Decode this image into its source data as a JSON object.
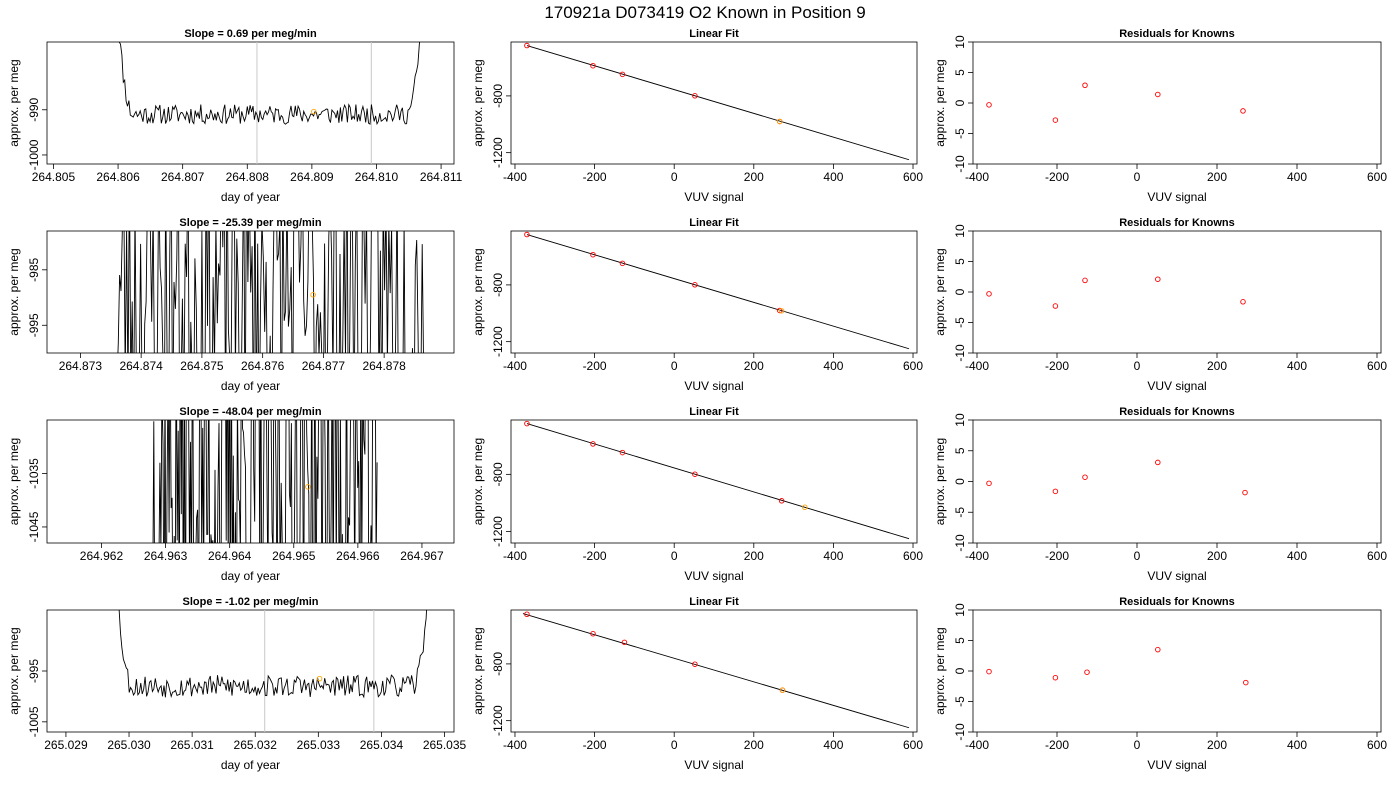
{
  "page_title": "170921a     D073419    O2 Known in Position  9",
  "colors": {
    "trace": "#000000",
    "marker_orange": "#ffa500",
    "marker_red": "#ff0000",
    "vline": "#c8c8c8",
    "frame": "#000000"
  },
  "chart_data": [
    {
      "type": "line",
      "title": "Slope =  0.69  per meg/min",
      "xlabel": "day of year",
      "ylabel": "approx. per meg",
      "xlim": [
        264.8049,
        264.8112
      ],
      "ylim": [
        -1002,
        -975
      ],
      "xticks": [
        "264.805",
        "264.806",
        "264.807",
        "264.808",
        "264.809",
        "264.810",
        "264.811"
      ],
      "yticks": [
        "-1000",
        "-990"
      ],
      "trace": {
        "x_start": 264.80595,
        "x_end": 264.81075,
        "baseline": -991,
        "noise": 2.2,
        "edge": "rise",
        "seed": 11
      },
      "vlines": [
        264.80815,
        264.80992
      ],
      "points": [
        {
          "x": 264.80903,
          "y": -990.4,
          "color": "orange"
        }
      ]
    },
    {
      "type": "scatter",
      "title": "Linear Fit",
      "xlabel": "VUV signal",
      "ylabel": "approx. per meg",
      "xlim": [
        -410,
        610
      ],
      "ylim": [
        -1280,
        -420
      ],
      "xticks": [
        "-400",
        "-200",
        "0",
        "200",
        "400",
        "600"
      ],
      "yticks": [
        "-800",
        "-1200"
      ],
      "line": [
        [
          -370,
          -445
        ],
        [
          590,
          -1250
        ]
      ],
      "points": [
        {
          "x": -370,
          "y": -445,
          "color": "red"
        },
        {
          "x": -204,
          "y": -587,
          "color": "red"
        },
        {
          "x": -130,
          "y": -648,
          "color": "red"
        },
        {
          "x": 52,
          "y": -799,
          "color": "red"
        },
        {
          "x": 265,
          "y": -980,
          "color": "red"
        },
        {
          "x": 265,
          "y": -980,
          "color": "orange"
        }
      ]
    },
    {
      "type": "scatter",
      "title": "Residuals for Knowns",
      "xlabel": "VUV signal",
      "ylabel": "approx. per meg",
      "xlim": [
        -410,
        610
      ],
      "ylim": [
        -10,
        10
      ],
      "xticks": [
        "-200",
        "0",
        "200",
        "400",
        "600"
      ],
      "xticks_extra": [
        "-400"
      ],
      "yticks": [
        "-10",
        "-5",
        "0",
        "5",
        "10"
      ],
      "points": [
        {
          "x": -370,
          "y": -0.3,
          "color": "red"
        },
        {
          "x": -204,
          "y": -2.8,
          "color": "red"
        },
        {
          "x": -130,
          "y": 2.9,
          "color": "red"
        },
        {
          "x": 52,
          "y": 1.4,
          "color": "red"
        },
        {
          "x": 265,
          "y": -1.3,
          "color": "red"
        }
      ]
    },
    {
      "type": "line",
      "title": "Slope =  -25.39  per meg/min",
      "xlabel": "day of year",
      "ylabel": "approx. per meg",
      "xlim": [
        264.87245,
        264.87915
      ],
      "ylim": [
        -1000,
        -978
      ],
      "xticks": [
        "264.873",
        "264.874",
        "264.875",
        "264.876",
        "264.877",
        "264.878"
      ],
      "yticks": [
        "-995",
        "-985"
      ],
      "trace": {
        "x_start": 264.8736,
        "x_end": 264.87865,
        "baseline": -990,
        "noise": 30,
        "edge": "none",
        "seed": 23
      },
      "vlines": [],
      "points": [
        {
          "x": 264.87683,
          "y": -989.5,
          "color": "orange"
        }
      ]
    },
    {
      "type": "scatter",
      "title": "Linear Fit",
      "xlabel": "VUV signal",
      "ylabel": "approx. per meg",
      "xlim": [
        -410,
        610
      ],
      "ylim": [
        -1280,
        -420
      ],
      "xticks": [
        "-400",
        "-200",
        "0",
        "200",
        "400",
        "600"
      ],
      "yticks": [
        "-800",
        "-1200"
      ],
      "line": [
        [
          -370,
          -445
        ],
        [
          590,
          -1250
        ]
      ],
      "points": [
        {
          "x": -370,
          "y": -445,
          "color": "red"
        },
        {
          "x": -204,
          "y": -587,
          "color": "red"
        },
        {
          "x": -130,
          "y": -648,
          "color": "red"
        },
        {
          "x": 52,
          "y": -799,
          "color": "red"
        },
        {
          "x": 265,
          "y": -980,
          "color": "red"
        },
        {
          "x": 270,
          "y": -983,
          "color": "orange"
        }
      ]
    },
    {
      "type": "scatter",
      "title": "Residuals for Knowns",
      "xlabel": "VUV signal",
      "ylabel": "approx. per meg",
      "xlim": [
        -410,
        610
      ],
      "ylim": [
        -10,
        10
      ],
      "xticks": [
        "-200",
        "0",
        "200",
        "400",
        "600"
      ],
      "xticks_extra": [
        "-400"
      ],
      "yticks": [
        "-10",
        "-5",
        "0",
        "5",
        "10"
      ],
      "points": [
        {
          "x": -370,
          "y": -0.3,
          "color": "red"
        },
        {
          "x": -204,
          "y": -2.3,
          "color": "red"
        },
        {
          "x": -130,
          "y": 1.9,
          "color": "red"
        },
        {
          "x": 52,
          "y": 2.1,
          "color": "red"
        },
        {
          "x": 265,
          "y": -1.6,
          "color": "red"
        }
      ]
    },
    {
      "type": "line",
      "title": "Slope =  -48.04  per meg/min",
      "xlabel": "day of year",
      "ylabel": "approx. per meg",
      "xlim": [
        264.96115,
        264.9675
      ],
      "ylim": [
        -1048,
        -1025
      ],
      "xticks": [
        "264.962",
        "264.963",
        "264.964",
        "264.965",
        "264.966",
        "264.967"
      ],
      "yticks": [
        "-1045",
        "-1035"
      ],
      "trace": {
        "x_start": 264.9628,
        "x_end": 264.9663,
        "baseline": -1036,
        "noise": 40,
        "edge": "none",
        "seed": 37
      },
      "vlines": [],
      "points": [
        {
          "x": 264.96522,
          "y": -1037.5,
          "color": "orange"
        }
      ]
    },
    {
      "type": "scatter",
      "title": "Linear Fit",
      "xlabel": "VUV signal",
      "ylabel": "approx. per meg",
      "xlim": [
        -410,
        610
      ],
      "ylim": [
        -1280,
        -420
      ],
      "xticks": [
        "-400",
        "-200",
        "0",
        "200",
        "400",
        "600"
      ],
      "yticks": [
        "-800",
        "-1200"
      ],
      "line": [
        [
          -370,
          -445
        ],
        [
          590,
          -1250
        ]
      ],
      "points": [
        {
          "x": -370,
          "y": -445,
          "color": "red"
        },
        {
          "x": -204,
          "y": -587,
          "color": "red"
        },
        {
          "x": -130,
          "y": -648,
          "color": "red"
        },
        {
          "x": 52,
          "y": -799,
          "color": "red"
        },
        {
          "x": 270,
          "y": -985,
          "color": "red"
        },
        {
          "x": 328,
          "y": -1030,
          "color": "orange"
        }
      ]
    },
    {
      "type": "scatter",
      "title": "Residuals for Knowns",
      "xlabel": "VUV signal",
      "ylabel": "approx. per meg",
      "xlim": [
        -410,
        610
      ],
      "ylim": [
        -10,
        10
      ],
      "xticks": [
        "-200",
        "0",
        "200",
        "400",
        "600"
      ],
      "xticks_extra": [
        "-400"
      ],
      "yticks": [
        "-10",
        "-5",
        "0",
        "5",
        "10"
      ],
      "points": [
        {
          "x": -370,
          "y": -0.3,
          "color": "red"
        },
        {
          "x": -204,
          "y": -1.6,
          "color": "red"
        },
        {
          "x": -130,
          "y": 0.7,
          "color": "red"
        },
        {
          "x": 52,
          "y": 3.1,
          "color": "red"
        },
        {
          "x": 270,
          "y": -1.8,
          "color": "red"
        }
      ]
    },
    {
      "type": "line",
      "title": "Slope =  -1.02  per meg/min",
      "xlabel": "day of year",
      "ylabel": "approx. per meg",
      "xlim": [
        265.0287,
        265.03515
      ],
      "ylim": [
        -1007,
        -983
      ],
      "xticks": [
        "265.029",
        "265.030",
        "265.031",
        "265.032",
        "265.033",
        "265.034",
        "265.035"
      ],
      "yticks": [
        "-1005",
        "-995"
      ],
      "trace": {
        "x_start": 265.02975,
        "x_end": 265.0348,
        "baseline": -998,
        "noise": 2.2,
        "edge": "rise",
        "seed": 53
      },
      "vlines": [
        265.03215,
        265.03388
      ],
      "points": [
        {
          "x": 265.03302,
          "y": -996.5,
          "color": "orange"
        }
      ]
    },
    {
      "type": "scatter",
      "title": "Linear Fit",
      "xlabel": "VUV signal",
      "ylabel": "approx. per meg",
      "xlim": [
        -410,
        610
      ],
      "ylim": [
        -1280,
        -420
      ],
      "xticks": [
        "-400",
        "-200",
        "0",
        "200",
        "400",
        "600"
      ],
      "yticks": [
        "-800",
        "-1200"
      ],
      "line": [
        [
          -380,
          -445
        ],
        [
          590,
          -1250
        ]
      ],
      "points": [
        {
          "x": -370,
          "y": -450,
          "color": "red"
        },
        {
          "x": -204,
          "y": -587,
          "color": "red"
        },
        {
          "x": -125,
          "y": -648,
          "color": "red"
        },
        {
          "x": 52,
          "y": -802,
          "color": "red"
        },
        {
          "x": 272,
          "y": -985,
          "color": "red"
        },
        {
          "x": 272,
          "y": -985,
          "color": "orange"
        }
      ]
    },
    {
      "type": "scatter",
      "title": "Residuals for Knowns",
      "xlabel": "VUV signal",
      "ylabel": "approx. per meg",
      "xlim": [
        -410,
        610
      ],
      "ylim": [
        -10,
        10
      ],
      "xticks": [
        "-200",
        "0",
        "200",
        "400",
        "600"
      ],
      "xticks_extra": [
        "-400"
      ],
      "yticks": [
        "-10",
        "-5",
        "0",
        "5",
        "10"
      ],
      "points": [
        {
          "x": -370,
          "y": -0.1,
          "color": "red"
        },
        {
          "x": -204,
          "y": -1.1,
          "color": "red"
        },
        {
          "x": -125,
          "y": -0.2,
          "color": "red"
        },
        {
          "x": 52,
          "y": 3.5,
          "color": "red"
        },
        {
          "x": 272,
          "y": -1.9,
          "color": "red"
        }
      ]
    }
  ]
}
